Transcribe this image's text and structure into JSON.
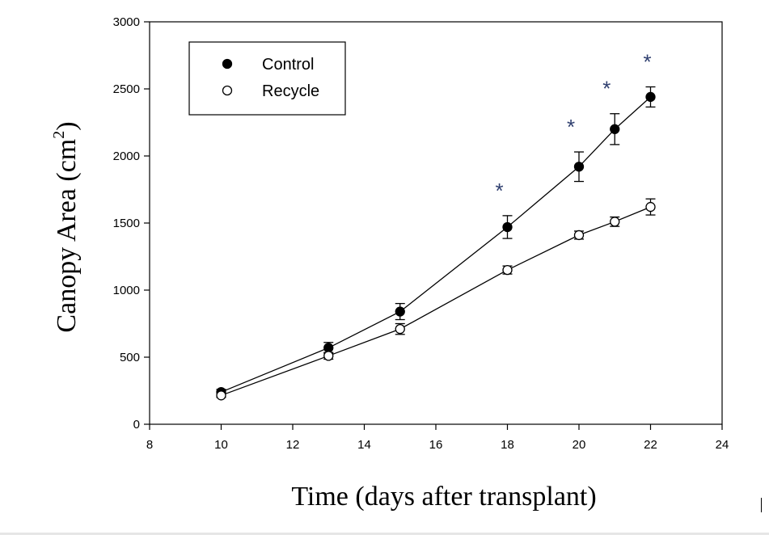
{
  "chart_data": {
    "type": "line",
    "title": "",
    "xlabel": "Time (days after transplant)",
    "ylabel_main": "Canopy Area (cm",
    "ylabel_sup": "2",
    "ylabel_close": ")",
    "xlim": [
      8,
      24
    ],
    "ylim": [
      0,
      3000
    ],
    "xticks": [
      8,
      10,
      12,
      14,
      16,
      18,
      20,
      22,
      24
    ],
    "yticks": [
      0,
      500,
      1000,
      1500,
      2000,
      2500,
      3000
    ],
    "legend_position": "top-left",
    "series": [
      {
        "name": "Control",
        "marker": "filled-circle",
        "x": [
          10,
          13,
          15,
          18,
          20,
          21,
          22
        ],
        "y": [
          240,
          570,
          840,
          1470,
          1920,
          2200,
          2440
        ],
        "err": [
          20,
          40,
          60,
          85,
          110,
          115,
          75
        ]
      },
      {
        "name": "Recycle",
        "marker": "open-circle",
        "x": [
          10,
          13,
          15,
          18,
          20,
          21,
          22
        ],
        "y": [
          215,
          510,
          710,
          1150,
          1410,
          1510,
          1620
        ],
        "err": [
          15,
          25,
          40,
          30,
          30,
          35,
          60
        ]
      }
    ],
    "annotations": [
      {
        "text": "*",
        "x": 18
      },
      {
        "text": "*",
        "x": 20
      },
      {
        "text": "*",
        "x": 21
      },
      {
        "text": "*",
        "x": 22
      }
    ]
  }
}
